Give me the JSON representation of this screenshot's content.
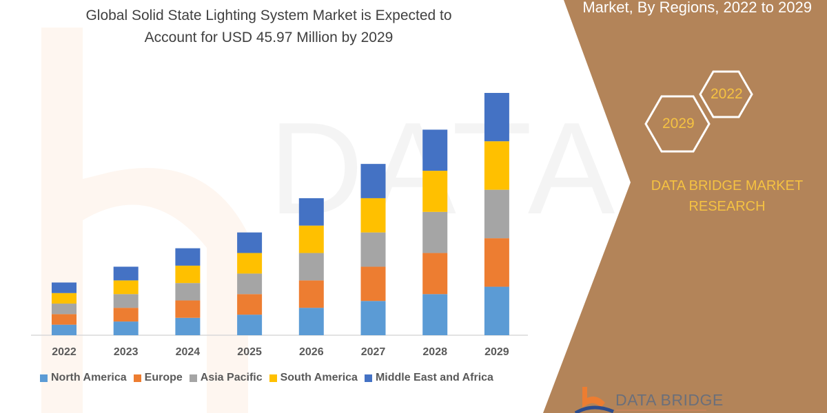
{
  "right_panel": {
    "title_visible_line": "Market, By Regions, 2022 to 2029",
    "hexagons": [
      "2029",
      "2022"
    ],
    "brand_lines": [
      "DATA BRIDGE MARKET",
      "RESEARCH"
    ],
    "logo_text": "DATA BRIDGE",
    "panel_color": "#b38459",
    "accent_color": "#f5c242"
  },
  "chart_data": {
    "type": "bar",
    "stacked": true,
    "title": "Global Solid State Lighting System Market is Expected to Account for USD 45.97 Million by 2029",
    "title_lines": [
      "Global Solid State Lighting System Market is Expected to",
      "Account for USD 45.97 Million by 2029"
    ],
    "categories": [
      "2022",
      "2023",
      "2024",
      "2025",
      "2026",
      "2027",
      "2028",
      "2029"
    ],
    "series": [
      {
        "name": "North America",
        "color": "#5b9bd5",
        "values": [
          2.0,
          2.6,
          3.3,
          3.9,
          5.2,
          6.5,
          7.8,
          9.2
        ]
      },
      {
        "name": "Europe",
        "color": "#ed7d31",
        "values": [
          2.0,
          2.6,
          3.3,
          3.9,
          5.2,
          6.5,
          7.8,
          9.2
        ]
      },
      {
        "name": "Asia Pacific",
        "color": "#a5a5a5",
        "values": [
          2.0,
          2.6,
          3.3,
          3.9,
          5.2,
          6.5,
          7.8,
          9.2
        ]
      },
      {
        "name": "South America",
        "color": "#ffc000",
        "values": [
          2.0,
          2.6,
          3.3,
          3.9,
          5.2,
          6.5,
          7.8,
          9.2
        ]
      },
      {
        "name": "Middle East and Africa",
        "color": "#4472c4",
        "values": [
          2.0,
          2.6,
          3.3,
          3.9,
          5.2,
          6.5,
          7.8,
          9.17
        ]
      }
    ],
    "xlabel": "",
    "ylabel": "",
    "y_axis_shown": false,
    "grid": false,
    "legend_position": "bottom"
  }
}
